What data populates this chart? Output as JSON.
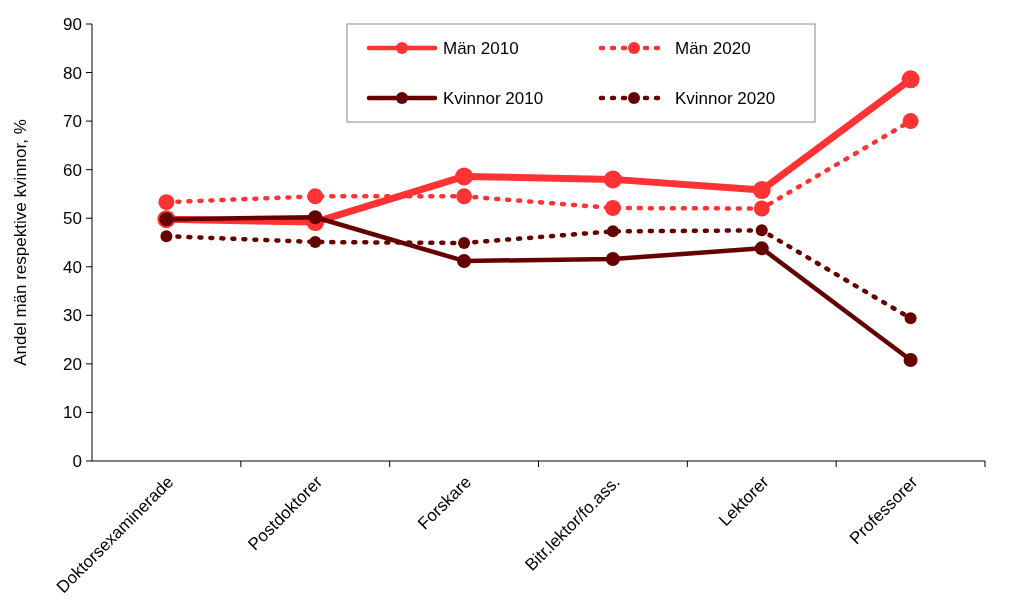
{
  "chart_data": {
    "type": "line",
    "ylabel": "Andel män respektive kvinnor, %",
    "categories": [
      "Doktorsexaminerade",
      "Postdoktorer",
      "Forskare",
      "Bitr.lektor/fo.ass.",
      "Lektorer",
      "Professorer"
    ],
    "series": [
      {
        "name": "Män 2010",
        "color": "#ff3333",
        "line_style": "solid",
        "values": [
          49.8,
          49.2,
          58.6,
          58.0,
          55.8,
          78.6
        ]
      },
      {
        "name": "Män 2020",
        "color": "#ff3333",
        "line_style": "dotted",
        "values": [
          53.3,
          54.5,
          54.5,
          52.1,
          52.0,
          70.0
        ]
      },
      {
        "name": "Kvinnor 2010",
        "color": "#660000",
        "line_style": "solid",
        "values": [
          49.8,
          50.2,
          41.2,
          41.6,
          43.8,
          20.8
        ]
      },
      {
        "name": "Kvinnor 2020",
        "color": "#660000",
        "line_style": "dotted",
        "values": [
          46.3,
          45.1,
          44.9,
          47.3,
          47.5,
          29.4
        ]
      }
    ],
    "ylim": [
      0,
      90
    ],
    "yticks": [
      0,
      10,
      20,
      30,
      40,
      50,
      60,
      70,
      80,
      90
    ],
    "grid": false,
    "legend": "top",
    "marker": "circle"
  }
}
